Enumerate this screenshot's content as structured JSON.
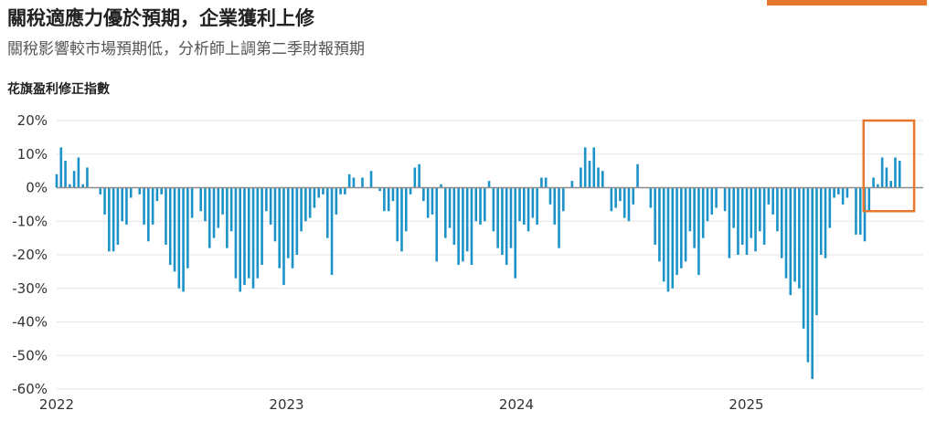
{
  "header": {
    "title": "關稅適應力優於預期，企業獲利上修",
    "subtitle": "關稅影響較市場預期低，分析師上調第二季財報預期",
    "chart_label": "花旗盈利修正指數"
  },
  "colors": {
    "bar": "#1b93c8",
    "accent": "#e8772e",
    "grid": "#e6e6e6",
    "zero": "#8c8c8c"
  },
  "chart_data": {
    "type": "bar",
    "title": "",
    "xlabel": "",
    "ylabel": "",
    "ylim": [
      -60,
      20
    ],
    "yticks": [
      20,
      10,
      0,
      -10,
      -20,
      -30,
      -40,
      -50,
      -60
    ],
    "ytick_labels": [
      "20%",
      "10%",
      "0%",
      "-10%",
      "-20%",
      "-30%",
      "-40%",
      "-50%",
      "-60%"
    ],
    "x_start": 2022.0,
    "x_step": 0.019,
    "xticks": [
      2022,
      2023,
      2024,
      2025
    ],
    "xtick_labels": [
      "2022",
      "2023",
      "2024",
      "2025"
    ],
    "grid": true,
    "highlight_box_x": [
      2025.51,
      2025.73
    ],
    "series": [
      {
        "values": [
          4,
          12,
          8,
          1,
          5,
          9,
          1,
          6,
          0,
          0,
          -2,
          -8,
          -19,
          -19,
          -17,
          -10,
          -11,
          -3,
          0,
          -2,
          -11,
          -16,
          -11,
          -4,
          -2,
          -17,
          -23,
          -25,
          -30,
          -31,
          -24,
          -9,
          0,
          -7,
          -10,
          -18,
          -15,
          -12,
          -8,
          -18,
          -13,
          -27,
          -31,
          -29,
          -27,
          -30,
          -27,
          -23,
          -7,
          -11,
          -16,
          -24,
          -29,
          -21,
          -24,
          -20,
          -13,
          -10,
          -9,
          -6,
          -3,
          -2,
          -15,
          -26,
          -8,
          -2,
          -2,
          4,
          3,
          0,
          3,
          0,
          5,
          0,
          -1,
          -7,
          -7,
          -4,
          -16,
          -19,
          -13,
          -2,
          6,
          7,
          -4,
          -9,
          -8,
          -22,
          1,
          -15,
          -12,
          -17,
          -23,
          -22,
          -19,
          -23,
          -10,
          -11,
          -10,
          2,
          -13,
          -18,
          -20,
          -23,
          -18,
          -27,
          -10,
          -11,
          -13,
          -9,
          -11,
          3,
          3,
          -5,
          -11,
          -18,
          -7,
          0,
          2,
          0,
          6,
          12,
          8,
          12,
          6,
          5,
          0,
          -7,
          -6,
          -4,
          -9,
          -10,
          -5,
          7,
          0,
          0,
          -6,
          -17,
          -22,
          -28,
          -31,
          -30,
          -26,
          -24,
          -22,
          -13,
          -18,
          -26,
          -15,
          -10,
          -8,
          -6,
          0,
          -7,
          -21,
          -12,
          -20,
          -17,
          -20,
          -15,
          -19,
          -13,
          -17,
          -5,
          -8,
          -13,
          -21,
          -27,
          -32,
          -28,
          -30,
          -42,
          -52,
          -57,
          -38,
          -20,
          -21,
          -12,
          -3,
          -2,
          -5,
          -3,
          0,
          -14,
          -14,
          -16,
          -7,
          3,
          1,
          9,
          6,
          2,
          9,
          8
        ]
      }
    ]
  }
}
